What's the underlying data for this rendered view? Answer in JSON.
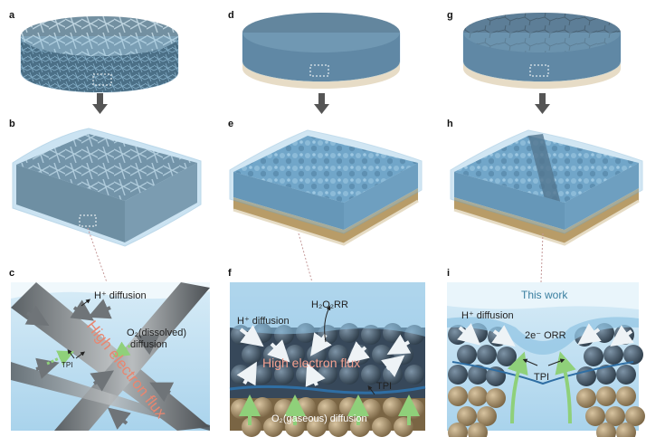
{
  "panel_labels": {
    "a": "a",
    "b": "b",
    "c": "c",
    "d": "d",
    "e": "e",
    "f": "f",
    "g": "g",
    "h": "h",
    "i": "i"
  },
  "panel_c": {
    "h_diffusion": "H⁺ diffusion",
    "o2_dissolved_line1": "O₂(dissolved)",
    "o2_dissolved_line2": "diffusion",
    "tpi": "TPI",
    "flux": "High electron flux"
  },
  "panel_f": {
    "h_diffusion": "H⁺ diffusion",
    "h2o2rr": "H₂O₂RR",
    "flux": "High electron flux",
    "tpi": "TPI",
    "o2_gaseous": "O₂(gaseous) diffusion"
  },
  "panel_i": {
    "this_work": "This work",
    "h_diffusion": "H⁺ diffusion",
    "orr": "2e⁻ ORR",
    "tpi": "TPI"
  },
  "colors": {
    "water": "#8ec3e3",
    "water_dark": "#4f8fb8",
    "carbon": "#3d4f5e",
    "arrow": "#6f7478",
    "gas_arrow": "#8fd07a"
  }
}
